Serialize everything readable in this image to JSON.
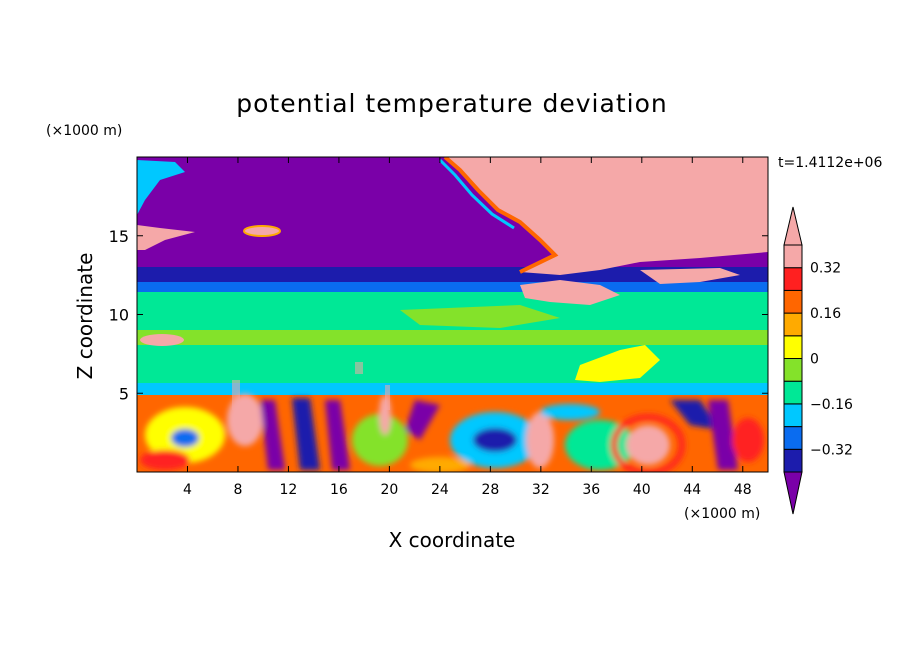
{
  "chart_data": {
    "type": "heatmap",
    "title": "potential temperature deviation",
    "xlabel": "X coordinate",
    "ylabel": "Z coordinate",
    "x_unit": "(×1000 m)",
    "y_unit": "(×1000 m)",
    "time_label": "t=1.4112e+06",
    "xlim": [
      0,
      50
    ],
    "ylim": [
      0,
      20
    ],
    "x_ticks": [
      4,
      8,
      12,
      16,
      20,
      24,
      28,
      32,
      36,
      40,
      44,
      48
    ],
    "y_ticks": [
      5,
      10,
      15
    ],
    "colorbar": {
      "levels": [
        -0.4,
        -0.32,
        -0.24,
        -0.16,
        -0.08,
        0,
        0.08,
        0.16,
        0.24,
        0.32,
        0.4
      ],
      "labels": [
        {
          "value": 0.32,
          "text": "0.32"
        },
        {
          "value": 0.16,
          "text": "0.16"
        },
        {
          "value": 0,
          "text": "0"
        },
        {
          "value": -0.16,
          "text": "−0.16"
        },
        {
          "value": -0.32,
          "text": "−0.32"
        }
      ],
      "colors": [
        "#7a00a8",
        "#1c1cac",
        "#0a6cf0",
        "#00c8ff",
        "#00e896",
        "#84e22a",
        "#ffff00",
        "#ffaa00",
        "#ff6600",
        "#ff2020",
        "#f5a8a8"
      ]
    }
  }
}
